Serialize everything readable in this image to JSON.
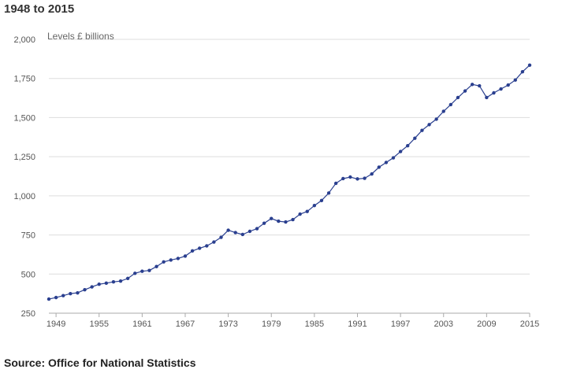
{
  "title": "1948 to 2015",
  "source": "Source: Office for National Statistics",
  "chart_data": {
    "type": "line",
    "title": "1948 to 2015",
    "ylabel": "Levels £ billions",
    "xlabel": "",
    "ylim": [
      250,
      2000
    ],
    "xlim": [
      1948,
      2015
    ],
    "yticks": [
      250,
      500,
      750,
      1000,
      1250,
      1500,
      1750,
      2000
    ],
    "ytick_labels": [
      "250",
      "500",
      "750",
      "1,000",
      "1,250",
      "1,500",
      "1,750",
      "2,000"
    ],
    "xticks": [
      1949,
      1955,
      1961,
      1967,
      1973,
      1979,
      1985,
      1991,
      1997,
      2003,
      2009,
      2015
    ],
    "xtick_labels": [
      "1949",
      "1955",
      "1961",
      "1967",
      "1973",
      "1979",
      "1985",
      "1991",
      "1997",
      "2003",
      "2009",
      "2015"
    ],
    "grid": true,
    "series": [
      {
        "color": "#2a3f8f",
        "x": [
          1948,
          1949,
          1950,
          1951,
          1952,
          1953,
          1954,
          1955,
          1956,
          1957,
          1958,
          1959,
          1960,
          1961,
          1962,
          1963,
          1964,
          1965,
          1966,
          1967,
          1968,
          1969,
          1970,
          1971,
          1972,
          1973,
          1974,
          1975,
          1976,
          1977,
          1978,
          1979,
          1980,
          1981,
          1982,
          1983,
          1984,
          1985,
          1986,
          1987,
          1988,
          1989,
          1990,
          1991,
          1992,
          1993,
          1994,
          1995,
          1996,
          1997,
          1998,
          1999,
          2000,
          2001,
          2002,
          2003,
          2004,
          2005,
          2006,
          2007,
          2008,
          2009,
          2010,
          2011,
          2012,
          2013,
          2014,
          2015
        ],
        "y": [
          340,
          350,
          362,
          375,
          380,
          400,
          418,
          435,
          442,
          450,
          455,
          472,
          505,
          518,
          523,
          548,
          578,
          590,
          600,
          615,
          648,
          665,
          680,
          705,
          735,
          780,
          765,
          753,
          773,
          790,
          825,
          855,
          838,
          833,
          848,
          883,
          900,
          938,
          970,
          1018,
          1080,
          1110,
          1120,
          1108,
          1112,
          1140,
          1183,
          1213,
          1243,
          1283,
          1320,
          1368,
          1418,
          1455,
          1490,
          1540,
          1583,
          1628,
          1670,
          1712,
          1703,
          1628,
          1658,
          1683,
          1708,
          1740,
          1793,
          1835
        ]
      }
    ]
  }
}
